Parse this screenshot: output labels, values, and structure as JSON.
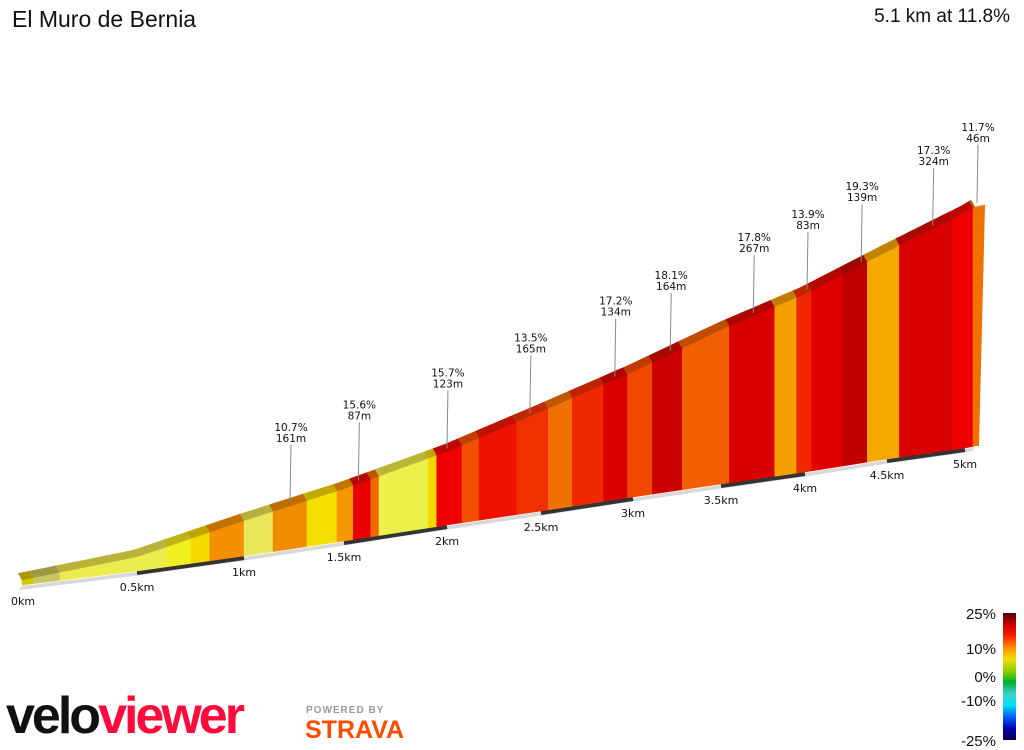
{
  "header": {
    "title": "El Muro de Bernia",
    "summary": "5.1 km at 11.8%"
  },
  "chart_data": {
    "type": "area",
    "title": "El Muro de Bernia",
    "subtitle": "5.1 km at 11.8%",
    "x_unit": "km",
    "xlim": [
      0,
      5.1
    ],
    "x_ticks": [
      "0km",
      "0.5km",
      "1km",
      "1.5km",
      "2km",
      "2.5km",
      "3km",
      "3.5km",
      "4km",
      "4.5km",
      "5km"
    ],
    "x_tick_values": [
      0,
      0.5,
      1,
      1.5,
      2,
      2.5,
      3,
      3.5,
      4,
      4.5,
      5
    ],
    "elevation_gain_profile": {
      "km": [
        0,
        0.5,
        1,
        1.5,
        2,
        2.5,
        3,
        3.5,
        4,
        4.5,
        5,
        5.1
      ],
      "m": [
        12,
        35,
        88,
        130,
        183,
        248,
        313,
        385,
        445,
        518,
        588,
        598
      ]
    },
    "segments": [
      {
        "start": 0,
        "color": "#d4c800"
      },
      {
        "start": 0.05,
        "color": "#c8c860"
      },
      {
        "start": 0.165,
        "color": "#ecec50"
      },
      {
        "start": 0.64,
        "color": "#f0f020"
      },
      {
        "start": 0.75,
        "color": "#f5dc00"
      },
      {
        "start": 0.84,
        "color": "#f59000"
      },
      {
        "start": 1.0,
        "color": "#e8e85a"
      },
      {
        "start": 1.145,
        "color": "#f08c00"
      },
      {
        "start": 1.315,
        "color": "#f5e000"
      },
      {
        "start": 1.465,
        "color": "#f59800"
      },
      {
        "start": 1.545,
        "color": "#e80000"
      },
      {
        "start": 1.63,
        "color": "#f06800"
      },
      {
        "start": 1.67,
        "color": "#ecf04a"
      },
      {
        "start": 1.91,
        "color": "#f5d800"
      },
      {
        "start": 1.95,
        "color": "#ee0000"
      },
      {
        "start": 2.08,
        "color": "#f05000"
      },
      {
        "start": 2.17,
        "color": "#ee1000"
      },
      {
        "start": 2.37,
        "color": "#f03000"
      },
      {
        "start": 2.54,
        "color": "#f07000"
      },
      {
        "start": 2.67,
        "color": "#f02800"
      },
      {
        "start": 2.84,
        "color": "#d80000"
      },
      {
        "start": 2.97,
        "color": "#f04800"
      },
      {
        "start": 3.11,
        "color": "#cc0000"
      },
      {
        "start": 3.28,
        "color": "#f06000"
      },
      {
        "start": 3.55,
        "color": "#d80000"
      },
      {
        "start": 3.82,
        "color": "#f5a000"
      },
      {
        "start": 3.95,
        "color": "#f02800"
      },
      {
        "start": 4.04,
        "color": "#e00000"
      },
      {
        "start": 4.23,
        "color": "#c00000"
      },
      {
        "start": 4.38,
        "color": "#f5a800"
      },
      {
        "start": 4.58,
        "color": "#d80000"
      },
      {
        "start": 4.92,
        "color": "#ee0000"
      },
      {
        "start": 5.08,
        "color": "#f07000"
      }
    ],
    "annotations": [
      {
        "km": 1.22,
        "grade": "10.7%",
        "length": "161m"
      },
      {
        "km": 1.56,
        "grade": "15.6%",
        "length": "87m"
      },
      {
        "km": 1.99,
        "grade": "15.7%",
        "length": "123m"
      },
      {
        "km": 2.43,
        "grade": "13.5%",
        "length": "165m"
      },
      {
        "km": 2.89,
        "grade": "17.2%",
        "length": "134m"
      },
      {
        "km": 3.2,
        "grade": "18.1%",
        "length": "164m"
      },
      {
        "km": 3.68,
        "grade": "17.8%",
        "length": "267m"
      },
      {
        "km": 4.0,
        "grade": "13.9%",
        "length": "83m"
      },
      {
        "km": 4.33,
        "grade": "19.3%",
        "length": "139m"
      },
      {
        "km": 4.78,
        "grade": "17.3%",
        "length": "324m"
      },
      {
        "km": 5.1,
        "grade": "11.7%",
        "length": "46m"
      }
    ],
    "legend": {
      "labels": [
        "25%",
        "10%",
        "0%",
        "-10%",
        "-25%"
      ],
      "values": [
        25,
        10,
        0,
        -10,
        -25
      ],
      "placement": "bottom-right",
      "colors": [
        "#5a0000",
        "#c80000",
        "#ff2000",
        "#ff9000",
        "#f0e000",
        "#90d000",
        "#00b030",
        "#40d0d0",
        "#00e0f0",
        "#0060ff",
        "#0000b0",
        "#000050"
      ]
    }
  },
  "branding": {
    "logo_velo": "velo",
    "logo_viewer": "viewer",
    "powered_by": "POWERED BY",
    "strava": "STRAVA"
  },
  "colors": {
    "viewer_red": "#ff0a3c",
    "strava_orange": "#fc4c02"
  }
}
